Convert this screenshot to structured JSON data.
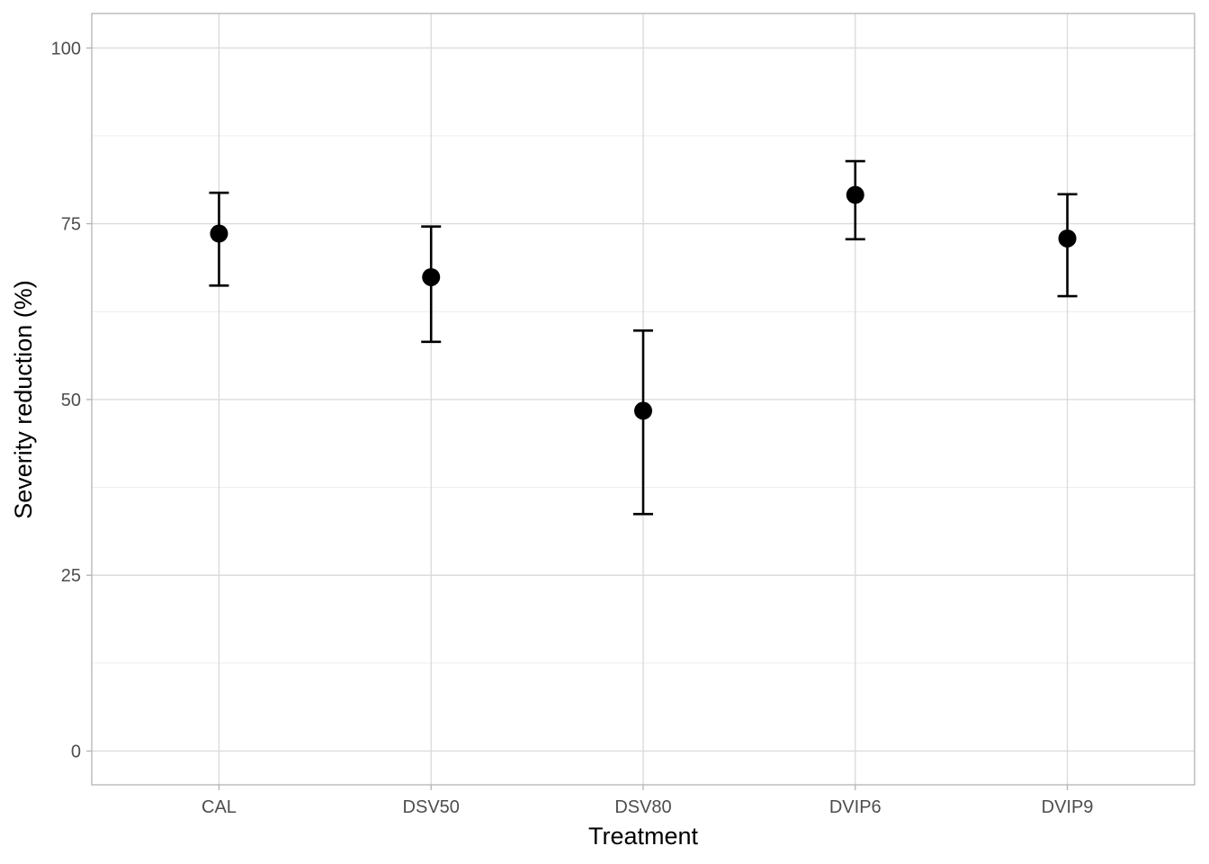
{
  "chart_data": {
    "type": "scatter",
    "xlabel": "Treatment",
    "ylabel": "Severity reduction (%)",
    "categories": [
      "CAL",
      "DSV50",
      "DSV80",
      "DVIP6",
      "DVIP9"
    ],
    "series": [
      {
        "values": [
          73.6,
          67.4,
          48.4,
          79.1,
          72.9
        ],
        "lower": [
          66.2,
          58.2,
          33.7,
          72.8,
          64.7
        ],
        "upper": [
          79.4,
          74.6,
          59.8,
          83.9,
          79.2
        ]
      }
    ],
    "ylim": [
      -4.8,
      104.9
    ],
    "yticks": [
      0,
      25,
      50,
      75,
      100
    ],
    "ytick_labels": [
      "0",
      "25",
      "50",
      "75",
      "100"
    ],
    "grid": true,
    "legend": "none",
    "point_color": "#000000"
  }
}
